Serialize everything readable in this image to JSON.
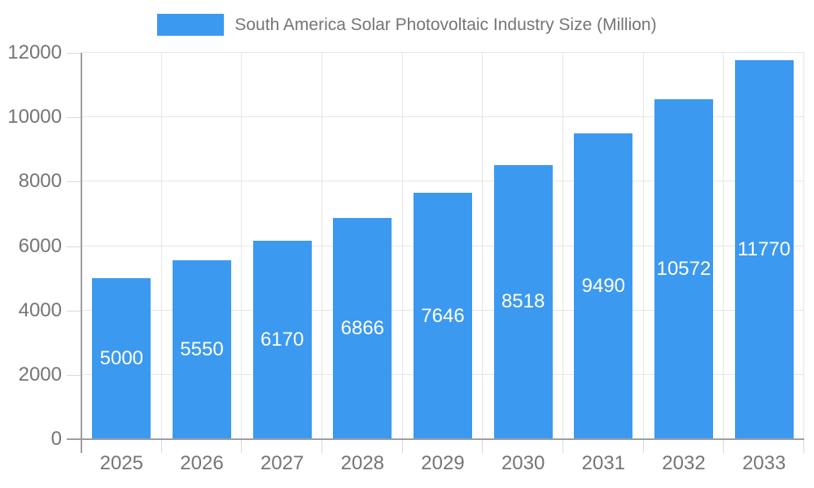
{
  "colors": {
    "bar": "#3C99F0",
    "bar_value_label": "#FFFFFF",
    "axis_line": "#9E9E9E",
    "grid_line": "#E6E6E6",
    "tick_line": "#D9D9D9",
    "text": "#757575",
    "background": "#FFFFFF"
  },
  "chart_data": {
    "type": "bar",
    "title": "South America Solar Photovoltaic Industry Size (Million)",
    "legend_position": "top",
    "categories": [
      "2025",
      "2026",
      "2027",
      "2028",
      "2029",
      "2030",
      "2031",
      "2032",
      "2033"
    ],
    "values": [
      5000,
      5550,
      6170,
      6866,
      7646,
      8518,
      9490,
      10572,
      11770
    ],
    "xlabel": "",
    "ylabel": "",
    "ylim": [
      0,
      12000
    ],
    "yticks": [
      0,
      2000,
      4000,
      6000,
      8000,
      10000,
      12000
    ],
    "grid": true,
    "value_labels_position": "inside-center"
  }
}
